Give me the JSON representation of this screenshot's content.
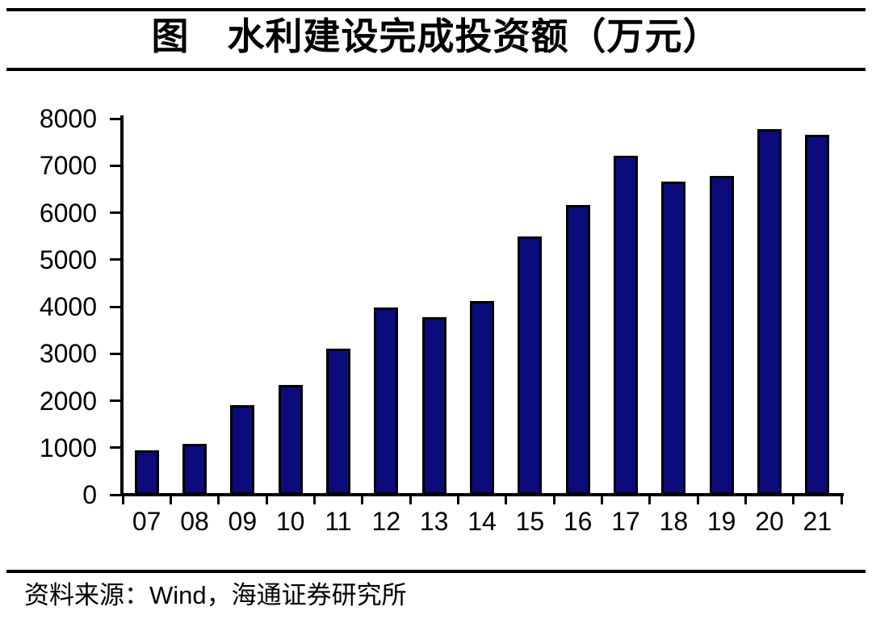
{
  "header": {
    "title_label": "图"
  },
  "footer": {
    "parts": [
      "资料来源：",
      "Wind",
      "，海通证券研究所"
    ]
  },
  "chart_data": {
    "type": "bar",
    "title": "图　水利建设完成投资额（万元）",
    "categories": [
      "07",
      "08",
      "09",
      "10",
      "11",
      "12",
      "13",
      "14",
      "15",
      "16",
      "17",
      "18",
      "19",
      "20",
      "21"
    ],
    "values": [
      950,
      1090,
      1900,
      2330,
      3110,
      3990,
      3780,
      4120,
      5500,
      6160,
      7210,
      6660,
      6780,
      7780,
      7650
    ],
    "xlabel": "",
    "ylabel": "",
    "ylim": [
      0,
      8000
    ],
    "ytick_interval": 1000,
    "yticks": [
      0,
      1000,
      2000,
      3000,
      4000,
      5000,
      6000,
      7000,
      8000
    ],
    "grid": false,
    "legend_position": "none",
    "bar_color": "#0b0b7b",
    "bar_border_color": "#000000",
    "axis_color": "#000000",
    "text_color": "#000000"
  }
}
